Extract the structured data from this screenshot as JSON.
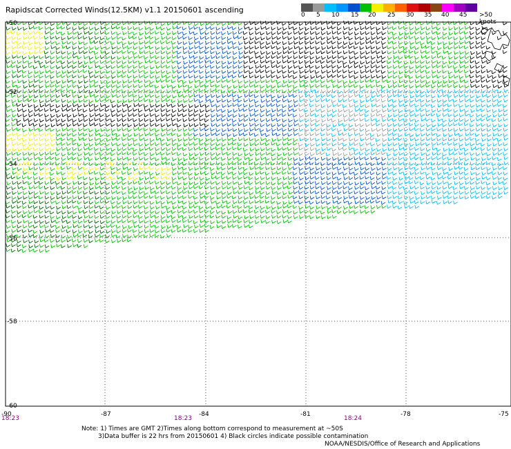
{
  "title": "Rapidscat Corrected Winds(12.5KM) v1.1 20150601 ascending",
  "legend": {
    "labels": [
      "0",
      "5",
      "10",
      "15",
      "20",
      "25",
      "30",
      "35",
      "40",
      "45",
      ">50 knots"
    ],
    "colors": [
      "#555555",
      "#9a9a9a",
      "#00bfff",
      "#0096ff",
      "#0050d0",
      "#00c000",
      "#f0f000",
      "#ffb000",
      "#ff6000",
      "#e01010",
      "#b00000",
      "#8b4513",
      "#ff00ff",
      "#a000c0",
      "#6000a0"
    ]
  },
  "map": {
    "lat_labels": [
      "-50",
      "-52",
      "-54",
      "-56",
      "-58",
      "-60"
    ],
    "lon_labels": [
      "-90",
      "-87",
      "-84",
      "-81",
      "-78",
      "-75"
    ],
    "time_labels": [
      "18:23",
      "18:23",
      "18:24"
    ],
    "barb_colors": {
      "0-5": "#9a9a9a",
      "5-10": "#00bfff",
      "10-15": "#0096ff",
      "15-20": "#0050d0",
      "20-25": "#00c000",
      "25-30": "#f0f000",
      "black": "#000000",
      "darkgreen": "#006400"
    }
  },
  "notes": {
    "line1": "Note: 1) Times are GMT 2)Times along bottom correspond to measurement at ~50S",
    "line2": "3)Data buffer is 22 hrs from 20150601 4) Black circles indicate possible contamination",
    "credit": "NOAA/NESDIS/Office of Research and Applications"
  }
}
